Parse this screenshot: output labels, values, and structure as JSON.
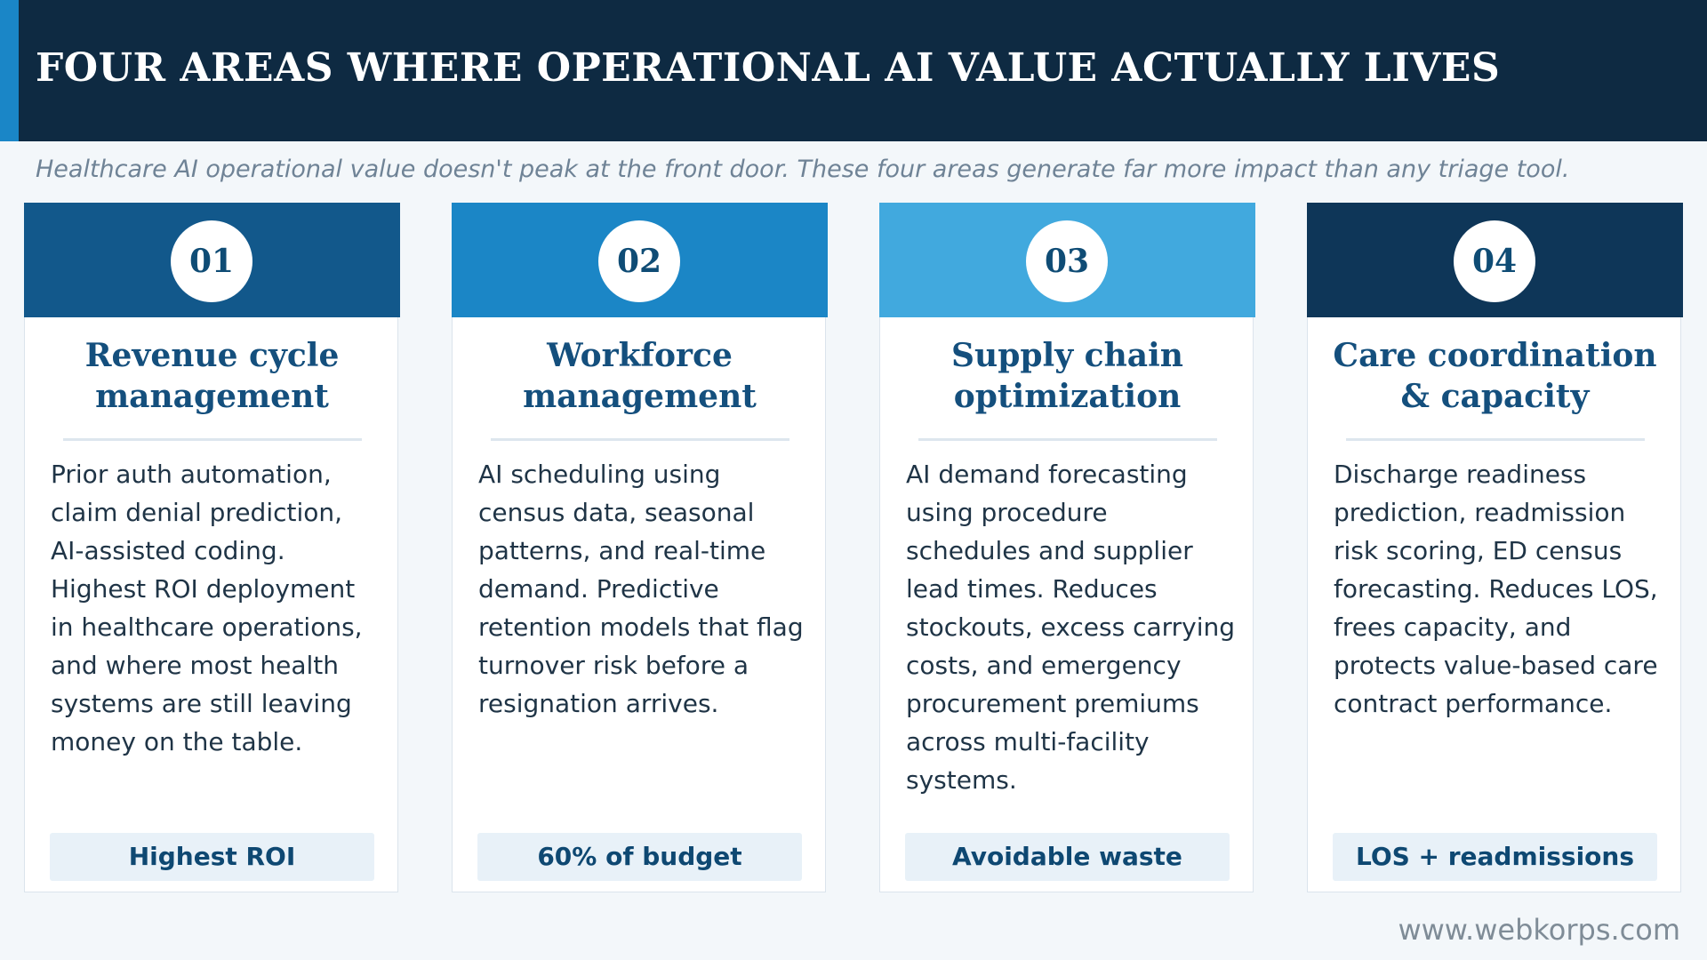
{
  "header": {
    "title": "FOUR AREAS WHERE OPERATIONAL AI VALUE ACTUALLY LIVES",
    "subtitle": "Healthcare AI operational value doesn't peak at the front door. These four areas generate far more impact than any triage tool."
  },
  "colors": {
    "header_bg": "#0e2a42",
    "header_accent": "#1a86c7",
    "title_text": "#144f7d",
    "tag_bg": "#e8f1f8"
  },
  "cards": [
    {
      "number": "01",
      "head_color": "#12588b",
      "title": "Revenue cycle management",
      "body": "Prior auth automation, claim denial prediction, AI-assisted coding. Highest ROI deployment in healthcare operations, and where most health systems are still leaving money on the table.",
      "tag": "Highest ROI"
    },
    {
      "number": "02",
      "head_color": "#1b86c6",
      "title": "Workforce management",
      "body": "AI scheduling using census data, seasonal patterns, and real-time demand. Predictive retention models that flag turnover risk before a resignation arrives.",
      "tag": "60% of budget"
    },
    {
      "number": "03",
      "head_color": "#41a9de",
      "title": "Supply chain optimization",
      "body": "AI demand forecasting using procedure schedules and supplier lead times. Reduces stockouts, excess carrying costs, and emergency procurement premiums across multi-facility systems.",
      "tag": "Avoidable waste"
    },
    {
      "number": "04",
      "head_color": "#0e3658",
      "title": "Care coordination & capacity",
      "body": "Discharge readiness prediction, readmission risk scoring, ED census forecasting. Reduces LOS, frees capacity, and protects value-based care contract performance.",
      "tag": "LOS + readmissions"
    }
  ],
  "footer": {
    "url": "www.webkorps.com"
  }
}
